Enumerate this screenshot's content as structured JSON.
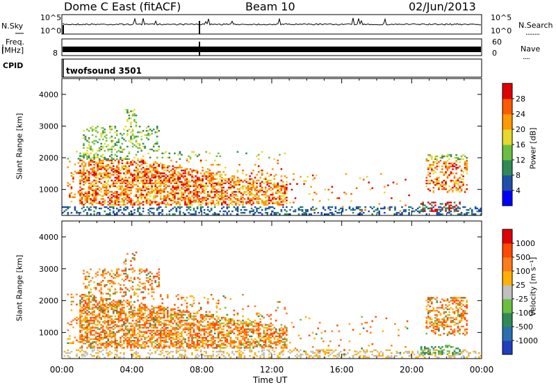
{
  "header": {
    "station": "Dome C East (fitACF)",
    "beam": "Beam 10",
    "date": "02/Jun/2013"
  },
  "nsky_panel": {
    "left_label": "N.Sky",
    "right_label": "N.Search",
    "tick_labels": [
      "10^5",
      "10^0"
    ],
    "right_marker": "........"
  },
  "freq_panel": {
    "left_label_top": "Freq.",
    "left_label_bottom": "[MHz]",
    "left_tick": "8",
    "right_label": "Nave",
    "right_ticks": [
      "60",
      "0"
    ],
    "right_marker": "...."
  },
  "cpid_panel": {
    "label": "CPID",
    "program": "twofsound 3501"
  },
  "chart_data": [
    {
      "type": "heatmap",
      "name": "power",
      "ylabel": "Slant Range [km]",
      "yticks": [
        "4000",
        "3000",
        "2000",
        "1000"
      ],
      "ytick_values": [
        4000,
        3000,
        2000,
        1000
      ],
      "ylim": [
        180,
        4500
      ],
      "xlim": [
        0,
        24
      ],
      "colorbar": {
        "label": "Power [dB]",
        "ticks": [
          "28",
          "24",
          "20",
          "16",
          "12",
          "8",
          "4"
        ],
        "tick_values": [
          28,
          24,
          20,
          16,
          12,
          8,
          4
        ],
        "range": [
          0,
          32
        ],
        "colors": [
          "#0000ff",
          "#1f4fa8",
          "#2e8b57",
          "#6abf40",
          "#e6d82c",
          "#ff9a00",
          "#ff5a00",
          "#e00000"
        ]
      }
    },
    {
      "type": "heatmap",
      "name": "velocity",
      "ylabel": "Slant Range [km]",
      "yticks": [
        "4000",
        "3000",
        "2000",
        "1000"
      ],
      "ytick_values": [
        4000,
        3000,
        2000,
        1000
      ],
      "ylim": [
        180,
        4500
      ],
      "xlim": [
        0,
        24
      ],
      "colorbar": {
        "label": "Velocity [m s⁻¹]",
        "ticks": [
          "1000",
          "500",
          "100",
          "25",
          "-25",
          "-100",
          "-500",
          "-1000"
        ],
        "colors": [
          "#1f3fbf",
          "#2a6fb0",
          "#2e8b57",
          "#6abf40",
          "#c0c0c0",
          "#ffb000",
          "#ff7a1a",
          "#ff4a00",
          "#e00000"
        ]
      }
    }
  ],
  "xaxis": {
    "title": "Time UT",
    "ticks": [
      "00:00",
      "04:00",
      "08:00",
      "12:00",
      "16:00",
      "20:00",
      "00:00"
    ],
    "tick_hours": [
      0,
      4,
      8,
      12,
      16,
      20,
      24
    ]
  }
}
